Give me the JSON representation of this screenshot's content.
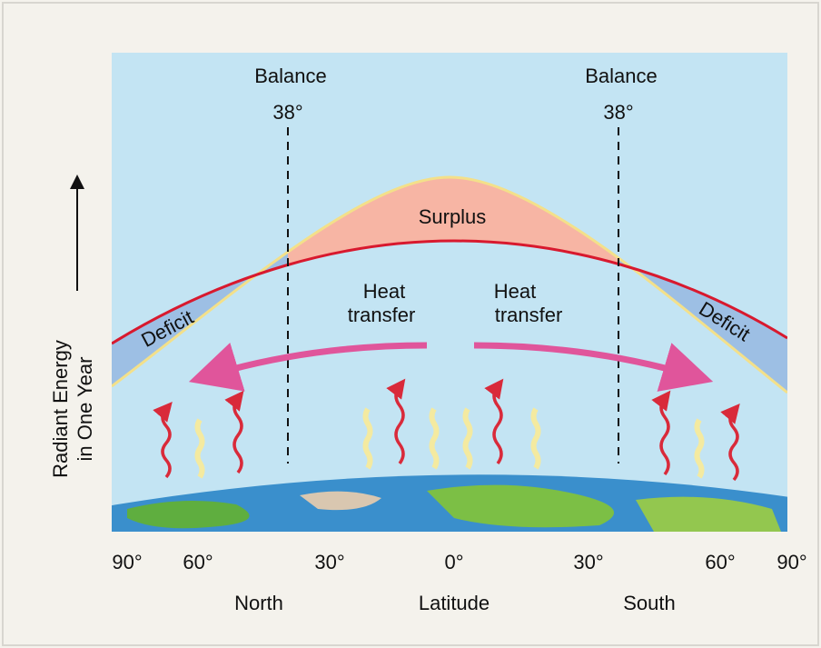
{
  "balance_labels": [
    {
      "title": "Balance",
      "degrees": "38°"
    },
    {
      "title": "Balance",
      "degrees": "38°"
    }
  ],
  "y_axis_label": [
    "Radiant Energy",
    "in One Year"
  ],
  "regions": {
    "surplus": "Surplus",
    "deficit_left": "Deficit",
    "deficit_right": "Deficit"
  },
  "heat_transfer": [
    [
      "Heat",
      "transfer"
    ],
    [
      "Heat",
      "transfer"
    ]
  ],
  "x_ticks": [
    "90°",
    "60°",
    "30°",
    "0°",
    "30°",
    "60°",
    "90°"
  ],
  "x_labels": [
    "North",
    "Latitude",
    "South"
  ]
}
